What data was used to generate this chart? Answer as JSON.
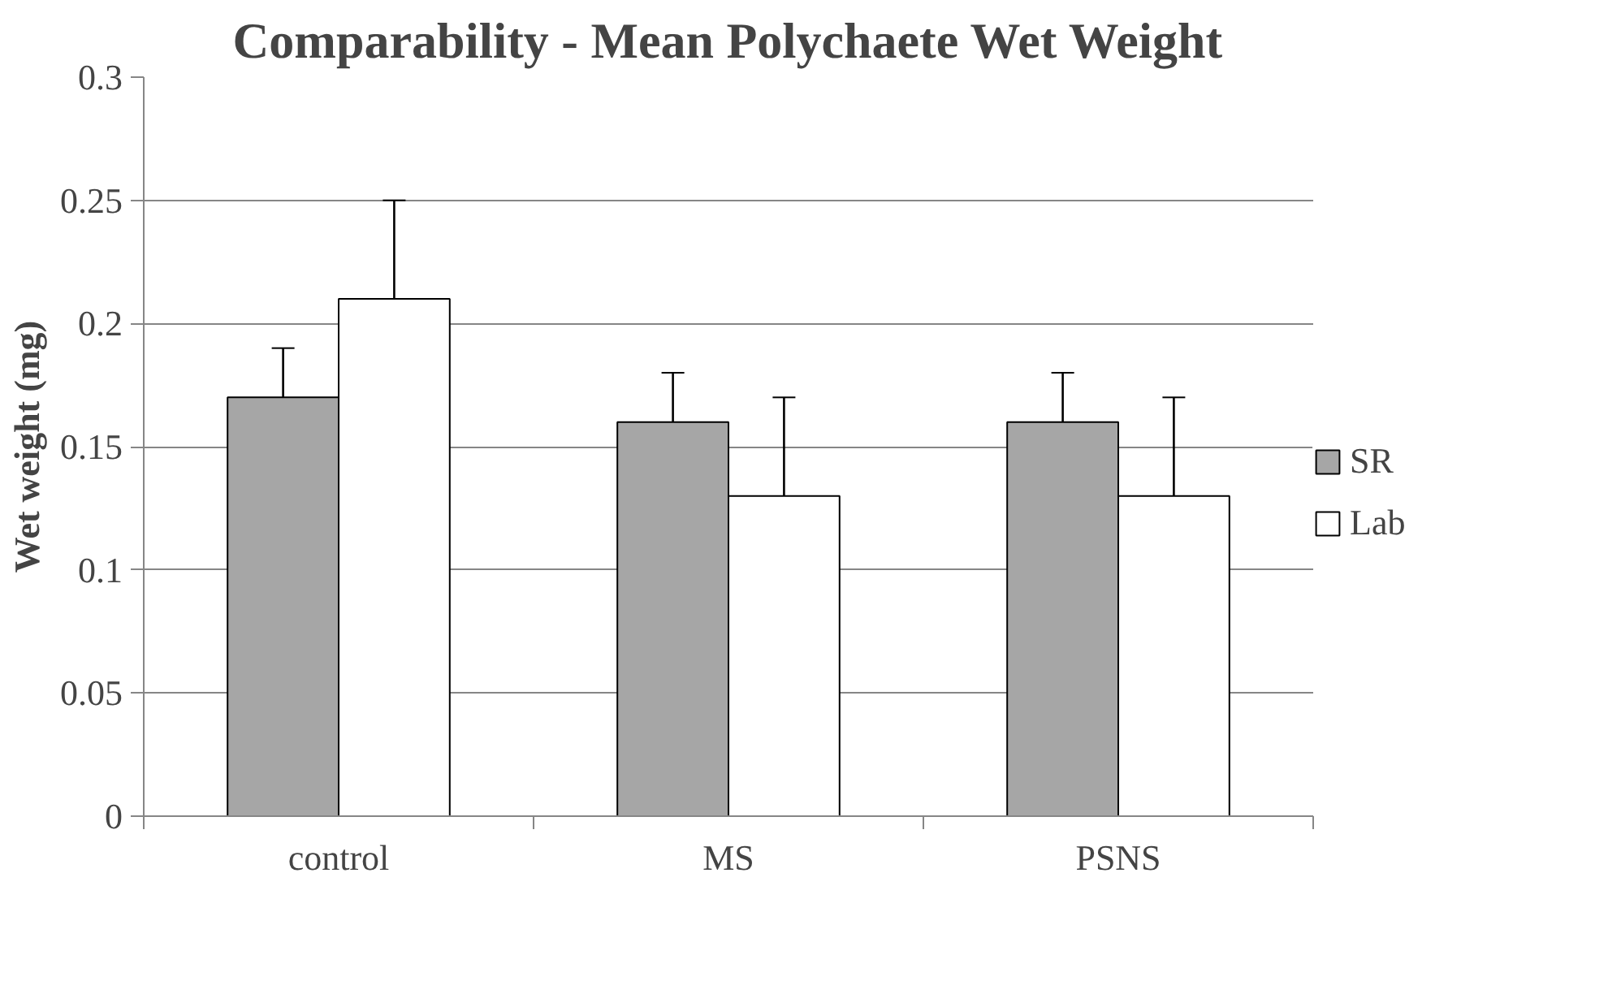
{
  "chart_data": {
    "type": "bar",
    "title": "Comparability - Mean Polychaete Wet Weight",
    "ylabel": "Wet weight (mg)",
    "categories": [
      "control",
      "MS",
      "PSNS"
    ],
    "series": [
      {
        "name": "SR",
        "color": "#a6a6a6",
        "values": [
          0.17,
          0.16,
          0.16
        ],
        "errors": [
          0.02,
          0.02,
          0.02
        ]
      },
      {
        "name": "Lab",
        "color": "#ffffff",
        "values": [
          0.21,
          0.13,
          0.13
        ],
        "errors": [
          0.04,
          0.04,
          0.04
        ]
      }
    ],
    "ylim": [
      0,
      0.3
    ],
    "yticks": [
      0,
      0.05,
      0.1,
      0.15,
      0.2,
      0.25,
      0.3
    ],
    "grid": "y",
    "legend": "right"
  }
}
